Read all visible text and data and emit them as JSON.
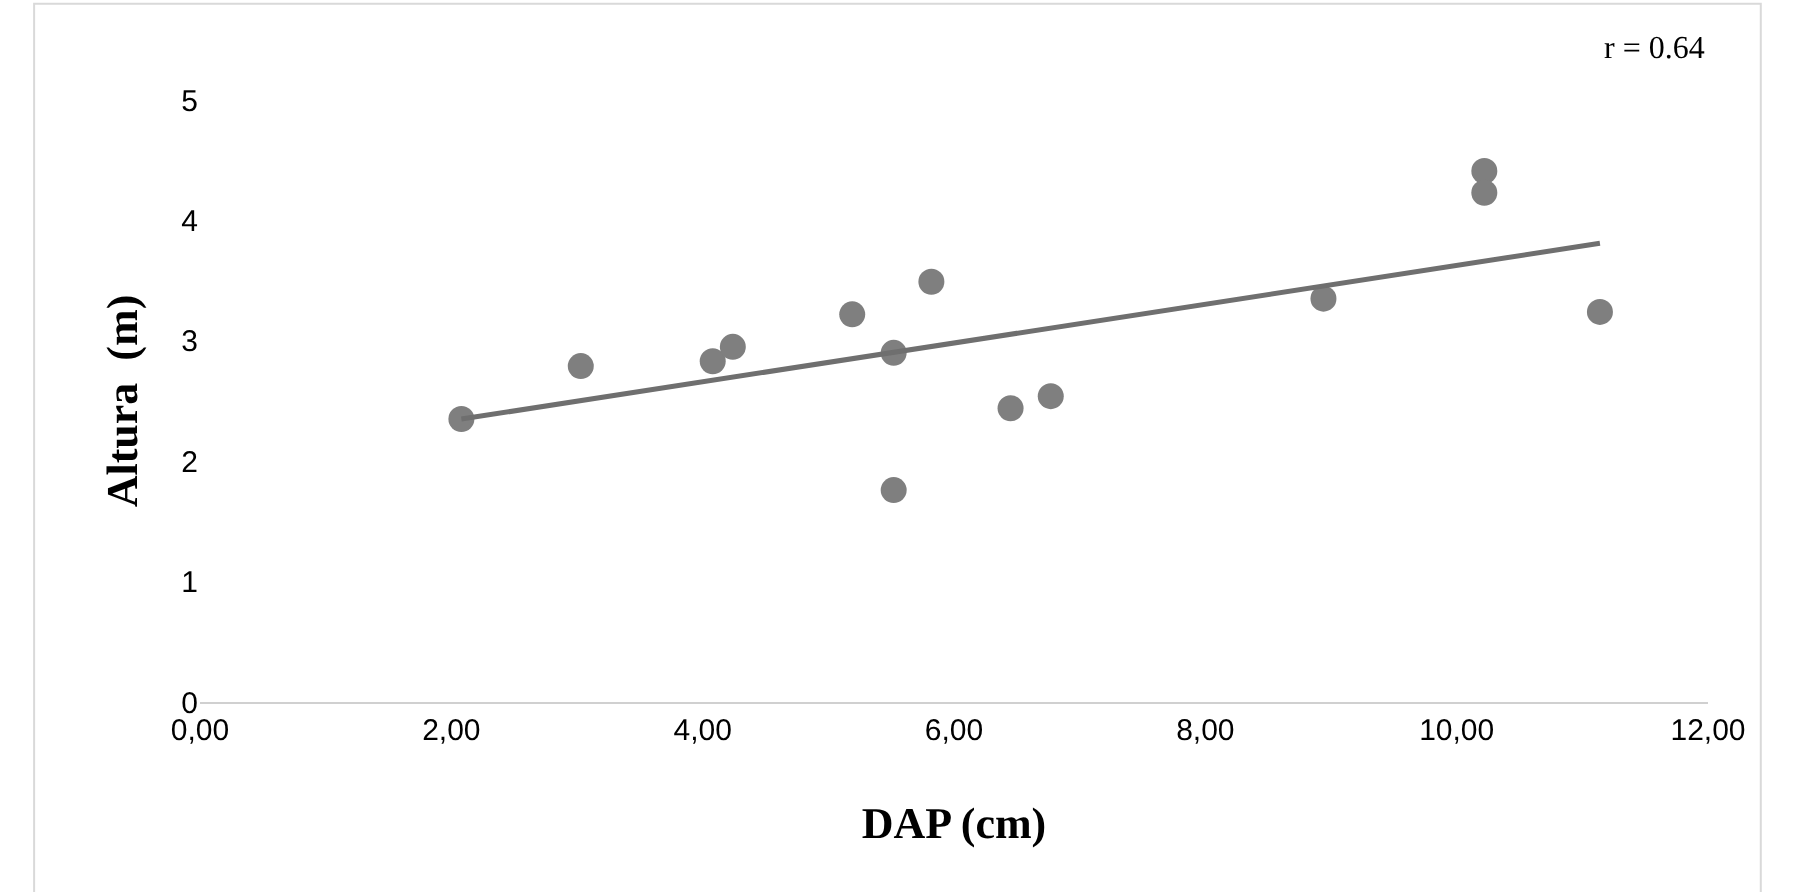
{
  "chart_data": {
    "type": "scatter",
    "xlabel": "DAP (cm)",
    "ylabel": "Altura  (m)",
    "annotations": [
      "r = 0.64"
    ],
    "xlim": [
      0,
      12
    ],
    "xticks": [
      {
        "value": 0,
        "label": "0,00"
      },
      {
        "value": 2,
        "label": "2,00"
      },
      {
        "value": 4,
        "label": "4,00"
      },
      {
        "value": 6,
        "label": "6,00"
      },
      {
        "value": 8,
        "label": "8,00"
      },
      {
        "value": 10,
        "label": "10,00"
      },
      {
        "value": 12,
        "label": "12,00"
      }
    ],
    "ylim": [
      0,
      5
    ],
    "yticks": [
      0,
      1,
      2,
      3,
      4,
      5
    ],
    "legend": false,
    "marker": "circle",
    "series": [
      {
        "color": "#7f7f7f",
        "x": [
          2.08,
          3.03,
          4.08,
          4.24,
          5.19,
          5.52,
          5.52,
          5.82,
          6.45,
          6.77,
          8.94,
          10.22,
          10.22,
          11.14
        ],
        "values": [
          2.35,
          2.79,
          2.83,
          2.95,
          3.22,
          2.9,
          1.76,
          3.49,
          2.44,
          2.54,
          3.35,
          4.41,
          4.23,
          3.24
        ]
      },
      {
        "type": "line",
        "marker": "none",
        "color": "#6f6f6f",
        "x": [
          2.08,
          11.14
        ],
        "values": [
          2.35,
          3.81
        ]
      }
    ]
  }
}
